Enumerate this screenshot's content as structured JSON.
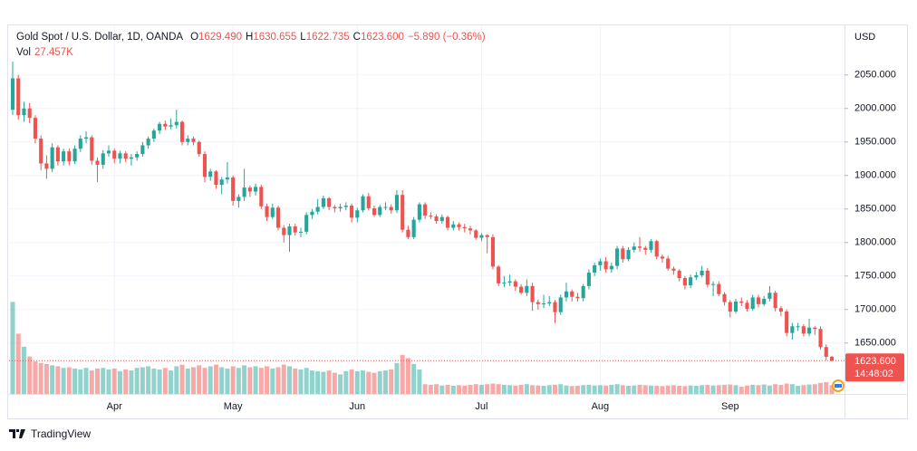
{
  "header": {
    "symbol": "Gold Spot / U.S. Dollar, 1D, OANDA",
    "ohlc": [
      {
        "key": "O",
        "value": "1629.490"
      },
      {
        "key": "H",
        "value": "1630.655"
      },
      {
        "key": "L",
        "value": "1622.735"
      },
      {
        "key": "C",
        "value": "1623.600"
      }
    ],
    "change": "−5.890 (−0.36%)",
    "volume": {
      "key": "Vol",
      "value": "27.457K"
    }
  },
  "chart_data": {
    "type": "candlestick",
    "currency": "USD",
    "categories": [
      null,
      null,
      null,
      null,
      null,
      null,
      null,
      null,
      null,
      null,
      null,
      null,
      null,
      null,
      null,
      null,
      null,
      null,
      "Apr",
      null,
      null,
      null,
      null,
      null,
      null,
      null,
      null,
      null,
      null,
      null,
      null,
      null,
      null,
      null,
      null,
      null,
      null,
      null,
      null,
      "May",
      null,
      null,
      null,
      null,
      null,
      null,
      null,
      null,
      null,
      null,
      null,
      null,
      null,
      null,
      null,
      null,
      null,
      null,
      null,
      null,
      null,
      "Jun",
      null,
      null,
      null,
      null,
      null,
      null,
      null,
      null,
      null,
      null,
      null,
      null,
      null,
      null,
      null,
      null,
      null,
      null,
      null,
      null,
      null,
      "Jul",
      null,
      null,
      null,
      null,
      null,
      null,
      null,
      null,
      null,
      null,
      null,
      null,
      null,
      null,
      null,
      null,
      null,
      null,
      null,
      null,
      "Aug",
      null,
      null,
      null,
      null,
      null,
      null,
      null,
      null,
      null,
      null,
      null,
      null,
      null,
      null,
      null,
      null,
      null,
      null,
      null,
      null,
      null,
      null,
      "Sep",
      null,
      null,
      null,
      null,
      null,
      null,
      null,
      null,
      null,
      null,
      null,
      null,
      null,
      null,
      null,
      null,
      null,
      null
    ],
    "open": [
      1998,
      2045,
      1990,
      2000,
      1986,
      1955,
      1918,
      1910,
      1942,
      1921,
      1936,
      1921,
      1940,
      1955,
      1957,
      1922,
      1916,
      1933,
      1937,
      1925,
      1933,
      1925,
      1927,
      1932,
      1945,
      1955,
      1967,
      1977,
      1973,
      1975,
      1980,
      1950,
      1955,
      1950,
      1932,
      1898,
      1906,
      1886,
      1894,
      1897,
      1862,
      1868,
      1882,
      1876,
      1883,
      1854,
      1838,
      1852,
      1822,
      1811,
      1824,
      1815,
      1816,
      1841,
      1846,
      1853,
      1866,
      1853,
      1851,
      1853,
      1855,
      1837,
      1848,
      1869,
      1851,
      1841,
      1853,
      1853,
      1848,
      1871,
      1819,
      1808,
      1834,
      1857,
      1840,
      1839,
      1832,
      1838,
      1822,
      1827,
      1823,
      1821,
      1818,
      1807,
      1811,
      1808,
      1764,
      1739,
      1740,
      1742,
      1734,
      1725,
      1735,
      1711,
      1708,
      1709,
      1711,
      1696,
      1718,
      1727,
      1719,
      1717,
      1735,
      1755,
      1766,
      1772,
      1760,
      1765,
      1791,
      1775,
      1789,
      1794,
      1792,
      1789,
      1802,
      1779,
      1776,
      1761,
      1758,
      1747,
      1736,
      1748,
      1751,
      1758,
      1737,
      1738,
      1723,
      1711,
      1697,
      1712,
      1710,
      1701,
      1718,
      1708,
      1716,
      1725,
      1702,
      1697,
      1665,
      1675,
      1675,
      1664,
      1673,
      1671,
      1644,
      1629.49
    ],
    "high": [
      2070,
      2050,
      2010,
      2008,
      1990,
      1960,
      1930,
      1948,
      1945,
      1940,
      1940,
      1945,
      1960,
      1966,
      1960,
      1927,
      1938,
      1945,
      1940,
      1937,
      1936,
      1932,
      1936,
      1950,
      1958,
      1970,
      1980,
      1982,
      1985,
      1998,
      1982,
      1960,
      1958,
      1952,
      1936,
      1910,
      1908,
      1898,
      1920,
      1900,
      1872,
      1910,
      1885,
      1888,
      1886,
      1858,
      1858,
      1855,
      1826,
      1828,
      1828,
      1822,
      1845,
      1850,
      1865,
      1870,
      1868,
      1856,
      1858,
      1860,
      1858,
      1852,
      1872,
      1874,
      1855,
      1856,
      1860,
      1857,
      1878,
      1878,
      1825,
      1838,
      1860,
      1860,
      1845,
      1842,
      1842,
      1840,
      1832,
      1830,
      1828,
      1825,
      1820,
      1814,
      1812,
      1812,
      1766,
      1750,
      1752,
      1745,
      1738,
      1745,
      1740,
      1715,
      1722,
      1720,
      1714,
      1722,
      1740,
      1730,
      1725,
      1738,
      1760,
      1770,
      1776,
      1778,
      1770,
      1795,
      1795,
      1793,
      1800,
      1808,
      1795,
      1805,
      1804,
      1782,
      1780,
      1764,
      1760,
      1750,
      1752,
      1756,
      1765,
      1762,
      1742,
      1742,
      1726,
      1714,
      1716,
      1718,
      1714,
      1722,
      1722,
      1720,
      1735,
      1728,
      1705,
      1700,
      1680,
      1680,
      1678,
      1686,
      1675,
      1675,
      1648,
      1630.655
    ],
    "low": [
      1990,
      1983,
      1980,
      1978,
      1948,
      1908,
      1895,
      1905,
      1915,
      1915,
      1915,
      1917,
      1935,
      1948,
      1916,
      1890,
      1910,
      1928,
      1918,
      1918,
      1920,
      1915,
      1922,
      1928,
      1940,
      1950,
      1962,
      1968,
      1969,
      1970,
      1945,
      1945,
      1945,
      1928,
      1890,
      1892,
      1880,
      1872,
      1888,
      1855,
      1852,
      1862,
      1868,
      1870,
      1850,
      1832,
      1835,
      1818,
      1800,
      1786,
      1810,
      1808,
      1812,
      1835,
      1842,
      1850,
      1848,
      1845,
      1846,
      1848,
      1830,
      1830,
      1845,
      1848,
      1838,
      1838,
      1848,
      1843,
      1844,
      1815,
      1805,
      1805,
      1830,
      1835,
      1835,
      1828,
      1828,
      1818,
      1818,
      1818,
      1815,
      1812,
      1804,
      1802,
      1784,
      1760,
      1735,
      1733,
      1735,
      1728,
      1722,
      1720,
      1698,
      1700,
      1702,
      1705,
      1680,
      1692,
      1712,
      1712,
      1712,
      1712,
      1730,
      1750,
      1758,
      1755,
      1755,
      1760,
      1770,
      1772,
      1785,
      1786,
      1782,
      1785,
      1775,
      1770,
      1758,
      1752,
      1742,
      1730,
      1732,
      1744,
      1748,
      1733,
      1720,
      1720,
      1706,
      1688,
      1694,
      1705,
      1697,
      1698,
      1703,
      1705,
      1712,
      1697,
      1690,
      1660,
      1655,
      1668,
      1660,
      1660,
      1662,
      1640,
      1624,
      1622.735
    ],
    "close": [
      2045,
      1990,
      2000,
      1986,
      1955,
      1918,
      1910,
      1942,
      1921,
      1936,
      1921,
      1940,
      1955,
      1957,
      1922,
      1916,
      1933,
      1937,
      1925,
      1933,
      1925,
      1927,
      1932,
      1945,
      1955,
      1967,
      1977,
      1973,
      1975,
      1980,
      1950,
      1955,
      1950,
      1932,
      1898,
      1906,
      1886,
      1894,
      1897,
      1862,
      1868,
      1882,
      1876,
      1883,
      1854,
      1838,
      1852,
      1822,
      1811,
      1824,
      1815,
      1816,
      1841,
      1846,
      1853,
      1866,
      1853,
      1851,
      1853,
      1855,
      1837,
      1848,
      1869,
      1851,
      1841,
      1853,
      1853,
      1848,
      1871,
      1819,
      1808,
      1834,
      1857,
      1840,
      1839,
      1832,
      1838,
      1822,
      1827,
      1823,
      1821,
      1818,
      1807,
      1811,
      1808,
      1764,
      1739,
      1740,
      1742,
      1734,
      1725,
      1735,
      1711,
      1708,
      1709,
      1711,
      1696,
      1718,
      1727,
      1719,
      1717,
      1735,
      1755,
      1766,
      1772,
      1760,
      1765,
      1791,
      1775,
      1789,
      1794,
      1792,
      1789,
      1802,
      1779,
      1776,
      1761,
      1758,
      1747,
      1736,
      1748,
      1751,
      1758,
      1737,
      1738,
      1723,
      1711,
      1697,
      1712,
      1710,
      1701,
      1718,
      1708,
      1716,
      1725,
      1702,
      1697,
      1665,
      1675,
      1675,
      1664,
      1673,
      1671,
      1644,
      1629.49,
      1623.6
    ],
    "volume": [
      283,
      185,
      145,
      115,
      100,
      95,
      92,
      88,
      85,
      80,
      82,
      78,
      75,
      80,
      72,
      78,
      80,
      75,
      78,
      70,
      75,
      72,
      80,
      82,
      85,
      78,
      75,
      80,
      72,
      85,
      90,
      78,
      82,
      88,
      80,
      85,
      90,
      82,
      78,
      85,
      80,
      88,
      82,
      85,
      80,
      85,
      78,
      82,
      90,
      85,
      78,
      75,
      80,
      72,
      70,
      68,
      72,
      65,
      60,
      70,
      75,
      70,
      72,
      68,
      65,
      70,
      72,
      75,
      95,
      120,
      110,
      92,
      75,
      30,
      28,
      30,
      26,
      28,
      25,
      27,
      26,
      28,
      30,
      28,
      30,
      32,
      30,
      28,
      27,
      26,
      28,
      30,
      27,
      26,
      25,
      27,
      28,
      30,
      26,
      24,
      25,
      27,
      28,
      26,
      27,
      26,
      28,
      30,
      27,
      25,
      26,
      28,
      27,
      26,
      25,
      24,
      26,
      27,
      25,
      24,
      26,
      25,
      27,
      28,
      26,
      27,
      28,
      29,
      27,
      22,
      26,
      28,
      27,
      29,
      26,
      30,
      28,
      32,
      30,
      25,
      27,
      29,
      30,
      34,
      36,
      27.457
    ],
    "up_color": "#26a69a",
    "down_color": "#ef5350",
    "ylim": [
      1574,
      2124
    ],
    "yticks": [
      {
        "value": 1650,
        "label": "1650.000"
      },
      {
        "value": 1700,
        "label": "1700.000"
      },
      {
        "value": 1750,
        "label": "1750.000"
      },
      {
        "value": 1800,
        "label": "1800.000"
      },
      {
        "value": 1850,
        "label": "1850.000"
      },
      {
        "value": 1900,
        "label": "1900.000"
      },
      {
        "value": 1950,
        "label": "1950.000"
      },
      {
        "value": 2000,
        "label": "2000.000"
      },
      {
        "value": 2050,
        "label": "2050.000"
      }
    ],
    "grid": true,
    "last_price_label": "1623.600",
    "countdown": "14:48:02"
  },
  "footer": {
    "brand": "TradingView"
  }
}
